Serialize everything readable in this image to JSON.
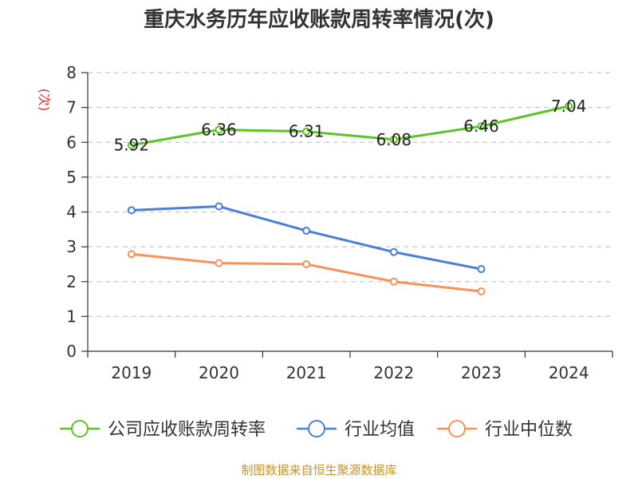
{
  "chart_data": {
    "type": "line",
    "title": "重庆水务历年应收账款周转率情况(次)",
    "ylabel": "(次)",
    "xlabel": "",
    "categories": [
      "2019",
      "2020",
      "2021",
      "2022",
      "2023",
      "2024"
    ],
    "yticks": [
      "0",
      "1",
      "2",
      "3",
      "4",
      "5",
      "6",
      "7",
      "8"
    ],
    "ylim": [
      0,
      8
    ],
    "grid": true,
    "legend_position": "bottom",
    "series": [
      {
        "name": "公司应收账款周转率",
        "color": "#5cc424",
        "values": [
          5.92,
          6.36,
          6.31,
          6.08,
          6.46,
          7.04
        ],
        "labels": [
          "5.92",
          "6.36",
          "6.31",
          "6.08",
          "6.46",
          "7.04"
        ]
      },
      {
        "name": "行业均值",
        "color": "#4a7fd8",
        "values": [
          4.05,
          4.16,
          3.46,
          2.85,
          2.36,
          null
        ]
      },
      {
        "name": "行业中位数",
        "color": "#f7935a",
        "values": [
          2.79,
          2.53,
          2.5,
          2.0,
          1.72,
          null
        ]
      }
    ],
    "source": "制图数据来自恒生聚源数据库"
  }
}
